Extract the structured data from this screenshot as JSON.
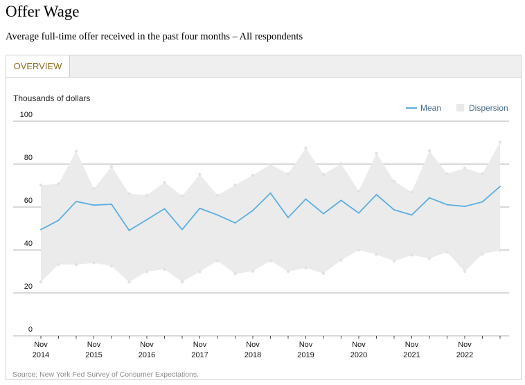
{
  "page": {
    "title": "Offer Wage",
    "subtitle": "Average full-time offer received in the past four months – All respondents",
    "source": "Source: New York Fed Survey of Consumer Expectations."
  },
  "tabs": [
    {
      "label": "OVERVIEW",
      "active": true
    }
  ],
  "colors": {
    "mean_line": "#5aaee0",
    "dispersion_band": "#ebebeb",
    "tab_text": "#8a6a1f",
    "gridline": "#b0b0b0"
  },
  "chart_data": {
    "type": "area",
    "ylabel": "Thousands of dollars",
    "ylim": [
      0,
      100
    ],
    "yticks": [
      0,
      20,
      40,
      60,
      80,
      100
    ],
    "grid": true,
    "legend_position": "top-right",
    "x": [
      "Nov 2014",
      "Mar 2015",
      "Jul 2015",
      "Nov 2015",
      "Mar 2016",
      "Jul 2016",
      "Nov 2016",
      "Mar 2017",
      "Jul 2017",
      "Nov 2017",
      "Mar 2018",
      "Jul 2018",
      "Nov 2018",
      "Mar 2019",
      "Jul 2019",
      "Nov 2019",
      "Mar 2020",
      "Jul 2020",
      "Nov 2020",
      "Mar 2021",
      "Jul 2021",
      "Nov 2021",
      "Mar 2022",
      "Jul 2022",
      "Nov 2022",
      "Mar 2023",
      "Jul 2023"
    ],
    "xtick_labels": [
      {
        "month": "Nov",
        "year": "2014",
        "index": 0
      },
      {
        "month": "Nov",
        "year": "2015",
        "index": 3
      },
      {
        "month": "Nov",
        "year": "2016",
        "index": 6
      },
      {
        "month": "Nov",
        "year": "2017",
        "index": 9
      },
      {
        "month": "Nov",
        "year": "2018",
        "index": 12
      },
      {
        "month": "Nov",
        "year": "2019",
        "index": 15
      },
      {
        "month": "Nov",
        "year": "2020",
        "index": 18
      },
      {
        "month": "Nov",
        "year": "2021",
        "index": 21
      },
      {
        "month": "Nov",
        "year": "2022",
        "index": 24
      }
    ],
    "series": [
      {
        "name": "Mean",
        "values": [
          49.5,
          53.8,
          62.6,
          60.9,
          61.3,
          49.1,
          54.1,
          59.2,
          49.5,
          59.4,
          56.3,
          52.6,
          58.4,
          66.5,
          55.1,
          63.7,
          56.9,
          63.1,
          57.2,
          65.8,
          58.7,
          56.3,
          64.3,
          61.1,
          60.3,
          62.4,
          69.6
        ]
      },
      {
        "name": "Dispersion",
        "lower": [
          25.1,
          33.3,
          33.2,
          34.0,
          32.5,
          25.0,
          29.9,
          31.0,
          25.1,
          29.9,
          34.9,
          29.0,
          30.1,
          35.0,
          30.0,
          31.6,
          29.1,
          35.2,
          40.0,
          37.9,
          34.8,
          37.6,
          36.1,
          39.0,
          30.0,
          38.1,
          39.9
        ],
        "upper": [
          70.2,
          70.8,
          86.0,
          68.5,
          78.8,
          66.2,
          65.5,
          71.5,
          65.2,
          75.2,
          65.5,
          70.2,
          74.8,
          79.8,
          75.5,
          87.5,
          75.2,
          80.2,
          67.4,
          85.1,
          72.0,
          67.0,
          86.2,
          75.5,
          78.1,
          75.5,
          90.2
        ]
      }
    ]
  }
}
